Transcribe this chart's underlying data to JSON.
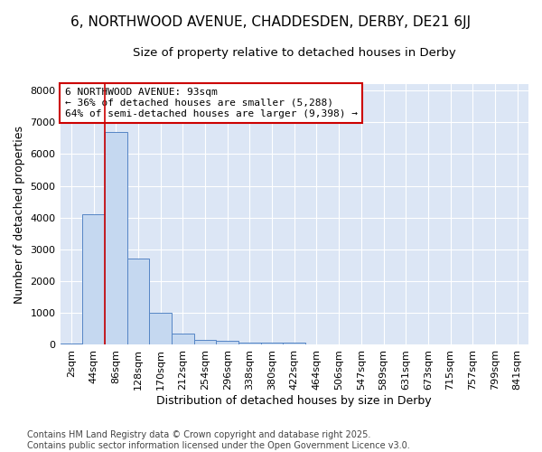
{
  "title1": "6, NORTHWOOD AVENUE, CHADDESDEN, DERBY, DE21 6JJ",
  "title2": "Size of property relative to detached houses in Derby",
  "xlabel": "Distribution of detached houses by size in Derby",
  "ylabel": "Number of detached properties",
  "categories": [
    "2sqm",
    "44sqm",
    "86sqm",
    "128sqm",
    "170sqm",
    "212sqm",
    "254sqm",
    "296sqm",
    "338sqm",
    "380sqm",
    "422sqm",
    "464sqm",
    "506sqm",
    "547sqm",
    "589sqm",
    "631sqm",
    "673sqm",
    "715sqm",
    "757sqm",
    "799sqm",
    "841sqm"
  ],
  "values": [
    50,
    4100,
    6700,
    2700,
    1000,
    350,
    150,
    130,
    60,
    60,
    60,
    0,
    0,
    0,
    0,
    0,
    0,
    0,
    0,
    0,
    0
  ],
  "bar_color": "#c5d8f0",
  "bar_edge_color": "#5585c5",
  "vline_color": "#cc0000",
  "vline_position": 1.5,
  "annotation_text": "6 NORTHWOOD AVENUE: 93sqm\n← 36% of detached houses are smaller (5,288)\n64% of semi-detached houses are larger (9,398) →",
  "annotation_box_color": "#ffffff",
  "annotation_box_edge_color": "#cc0000",
  "ylim": [
    0,
    8200
  ],
  "yticks": [
    0,
    1000,
    2000,
    3000,
    4000,
    5000,
    6000,
    7000,
    8000
  ],
  "background_color": "#dce6f5",
  "plot_bg_color": "#dce6f5",
  "grid_color": "#ffffff",
  "fig_bg_color": "#ffffff",
  "footer": "Contains HM Land Registry data © Crown copyright and database right 2025.\nContains public sector information licensed under the Open Government Licence v3.0.",
  "title_fontsize": 11,
  "subtitle_fontsize": 9.5,
  "axis_label_fontsize": 9,
  "tick_fontsize": 8,
  "footer_fontsize": 7,
  "ann_fontsize": 8
}
